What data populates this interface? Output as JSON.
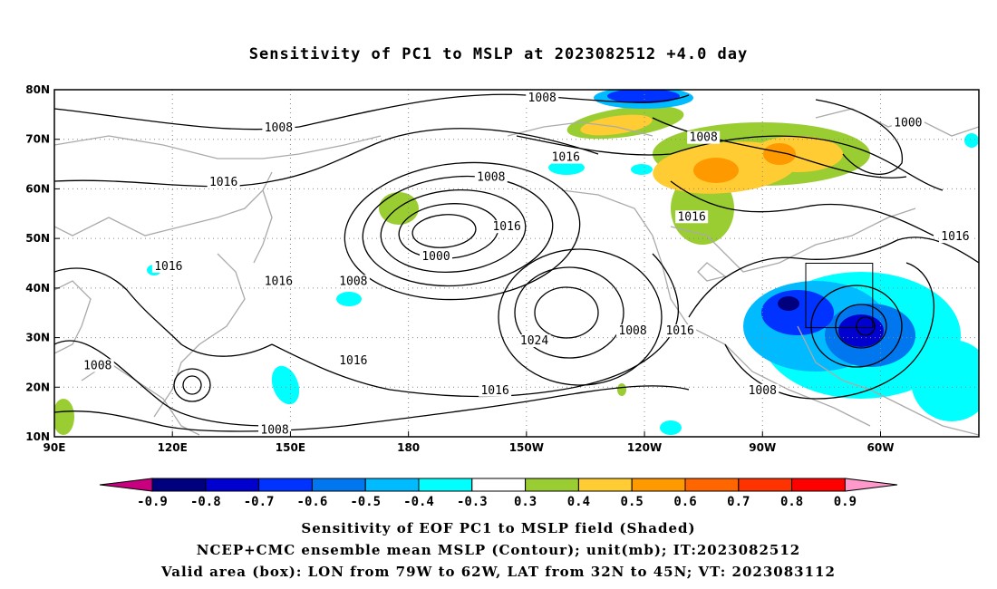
{
  "title": "Sensitivity of PC1 to MSLP at 2023082512 +4.0 day",
  "footer": {
    "line1": "Sensitivity of EOF PC1 to MSLP field (Shaded)",
    "line2": "NCEP+CMC ensemble mean MSLP (Contour); unit(mb); IT:2023082512",
    "line3": "Valid area (box): LON from 79W to 62W, LAT from 32N to 45N; VT: 2023083112"
  },
  "colors": {
    "neg": [
      "#c8007f",
      "#00007f",
      "#0000cf",
      "#0033ff",
      "#0077ee",
      "#00bbff",
      "#00ffff"
    ],
    "pos": [
      "#9acd32",
      "#ffcc33",
      "#ff9900",
      "#ff6600",
      "#ff3300",
      "#ff0000",
      "#ff99cc"
    ],
    "land": "#aaaaaa",
    "contour": "#000000"
  },
  "chart_data": {
    "type": "contour-map",
    "title": "Sensitivity of PC1 to MSLP at 2023082512 +4.0 day",
    "lon_ticks": [
      "90E",
      "120E",
      "150E",
      "180",
      "150W",
      "120W",
      "90W",
      "60W"
    ],
    "lat_ticks": [
      "80N",
      "70N",
      "60N",
      "50N",
      "40N",
      "30N",
      "20N",
      "10N"
    ],
    "lon_range": [
      90,
      325
    ],
    "lat_range": [
      10,
      80
    ],
    "colorbar_labels": [
      "-0.9",
      "-0.8",
      "-0.7",
      "-0.6",
      "-0.5",
      "-0.4",
      "-0.3",
      "0.3",
      "0.4",
      "0.5",
      "0.6",
      "0.7",
      "0.8",
      "0.9"
    ],
    "contour_labels": [
      {
        "text": "1008",
        "lon": 214,
        "lat": 78
      },
      {
        "text": "1008",
        "lon": 147,
        "lat": 72
      },
      {
        "text": "1000",
        "lon": 307,
        "lat": 73
      },
      {
        "text": "1008",
        "lon": 255,
        "lat": 70
      },
      {
        "text": "1016",
        "lon": 220,
        "lat": 66
      },
      {
        "text": "1016",
        "lon": 133,
        "lat": 61
      },
      {
        "text": "1008",
        "lon": 201,
        "lat": 62
      },
      {
        "text": "1016",
        "lon": 252,
        "lat": 54
      },
      {
        "text": "1016",
        "lon": 319,
        "lat": 50
      },
      {
        "text": "1016",
        "lon": 205,
        "lat": 52
      },
      {
        "text": "1000",
        "lon": 187,
        "lat": 46
      },
      {
        "text": "1016",
        "lon": 119,
        "lat": 44
      },
      {
        "text": "1016",
        "lon": 147,
        "lat": 41
      },
      {
        "text": "1008",
        "lon": 166,
        "lat": 41
      },
      {
        "text": "1008",
        "lon": 237,
        "lat": 31
      },
      {
        "text": "1016",
        "lon": 249,
        "lat": 31
      },
      {
        "text": "1024",
        "lon": 212,
        "lat": 29
      },
      {
        "text": "1016",
        "lon": 166,
        "lat": 25
      },
      {
        "text": "1008",
        "lon": 101,
        "lat": 24
      },
      {
        "text": "1016",
        "lon": 202,
        "lat": 19
      },
      {
        "text": "1008",
        "lon": 270,
        "lat": 19
      },
      {
        "text": "1008",
        "lon": 146,
        "lat": 11
      }
    ],
    "valid_box": {
      "lon": [
        -79,
        -62
      ],
      "lat": [
        32,
        45
      ]
    },
    "grid": true
  }
}
